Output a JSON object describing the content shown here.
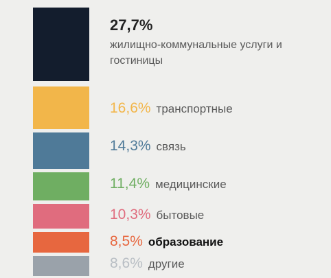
{
  "chart_data": {
    "type": "bar",
    "orientation": "stacked-vertical",
    "title": "",
    "xlabel": "",
    "ylabel": "",
    "unit": "%",
    "categories": [
      "жилищно-коммунальные услуги и гостиницы",
      "транспортные",
      "связь",
      "медицинские",
      "бытовые",
      "образование",
      "другие"
    ],
    "values": [
      27.7,
      16.6,
      14.3,
      11.4,
      10.3,
      8.5,
      8.6
    ],
    "value_labels": [
      "27,7%",
      "16,6%",
      "14,3%",
      "11,4%",
      "10,3%",
      "8,5%",
      "8,6%"
    ],
    "colors": [
      "#131d2d",
      "#f2b64a",
      "#4f7a98",
      "#6fae62",
      "#e06c7e",
      "#e7673f",
      "#9aa2aa"
    ],
    "label_colors": [
      "#222222",
      "#f2b64a",
      "#4f7a98",
      "#6fae62",
      "#e06c7e",
      "#e7673f",
      "#b8bec4"
    ],
    "legend": "none",
    "grid": false
  }
}
